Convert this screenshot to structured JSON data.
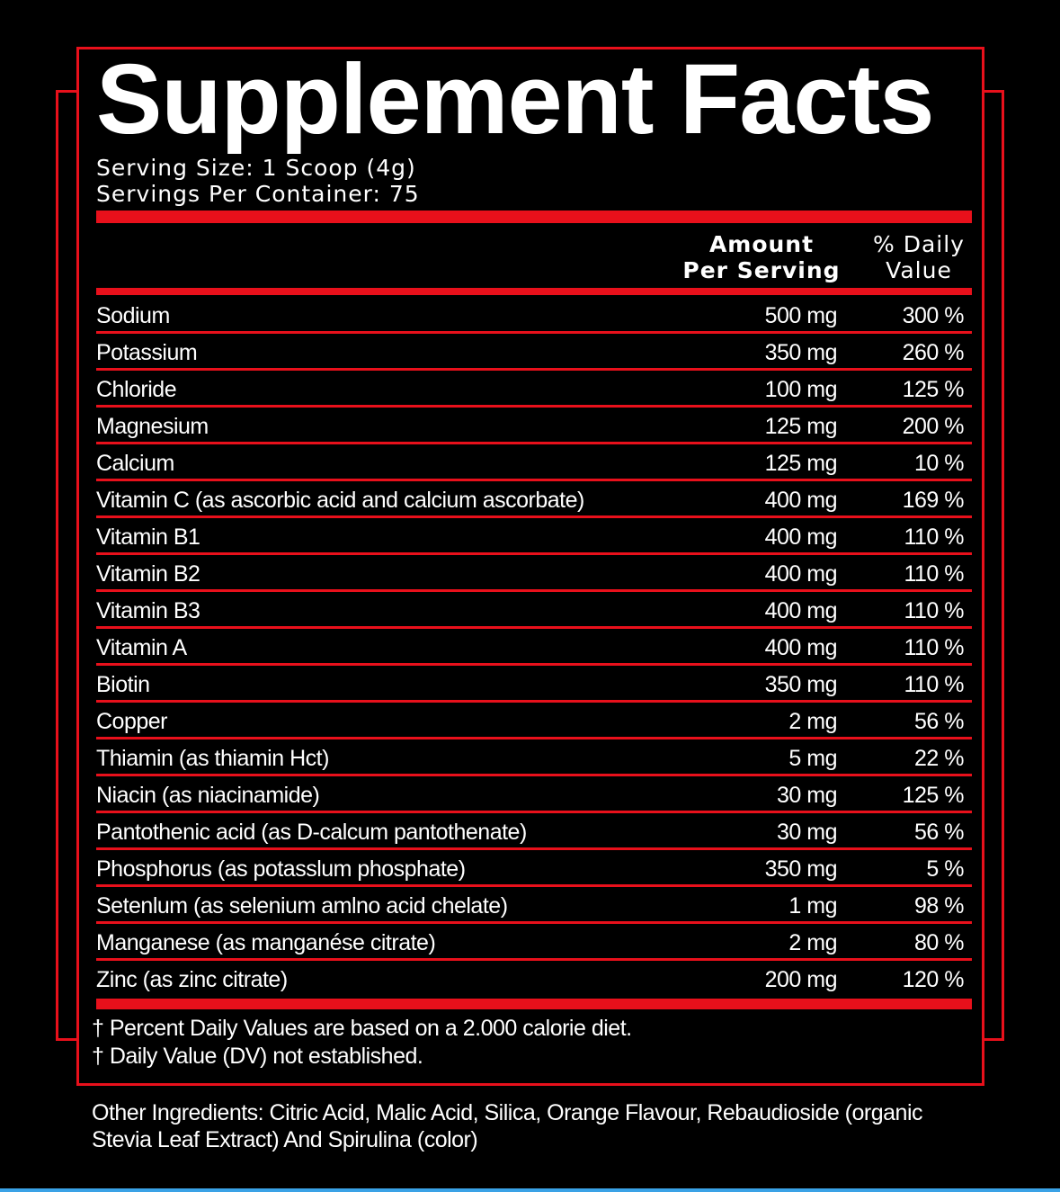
{
  "label": {
    "title": "Supplement Facts",
    "serving_size": "Serving Size: 1 Scoop (4g)",
    "servings_per_container": "Servings Per Container: 75",
    "header_amount_line1": "Amount",
    "header_amount_line2": "Per Serving",
    "header_dv_line1": "% Daily",
    "header_dv_line2": "Value",
    "nutrients": [
      {
        "name": "Sodium",
        "amount": "500 mg",
        "dv": "300 %"
      },
      {
        "name": "Potassium",
        "amount": "350 mg",
        "dv": "260 %"
      },
      {
        "name": "Chloride",
        "amount": "100 mg",
        "dv": "125 %"
      },
      {
        "name": "Magnesium",
        "amount": "125 mg",
        "dv": "200 %"
      },
      {
        "name": "Calcium",
        "amount": "125 mg",
        "dv": "10 %"
      },
      {
        "name": "Vitamin C (as ascorbic acid and calcium ascorbate)",
        "amount": "400 mg",
        "dv": "169 %"
      },
      {
        "name": "Vitamin B1",
        "amount": "400  mg",
        "dv": "110 %"
      },
      {
        "name": "Vitamin B2",
        "amount": "400 mg",
        "dv": "110 %"
      },
      {
        "name": "Vitamin B3",
        "amount": "400 mg",
        "dv": "110 %"
      },
      {
        "name": "Vitamin A",
        "amount": "400 mg",
        "dv": "110 %"
      },
      {
        "name": "Biotin",
        "amount": "350 mg",
        "dv": "110 %"
      },
      {
        "name": "Copper",
        "amount": "2 mg",
        "dv": "56 %"
      },
      {
        "name": "Thiamin (as thiamin Hct)",
        "amount": "5  mg",
        "dv": "22 %"
      },
      {
        "name": "Niacin (as niacinamide)",
        "amount": "30  mg",
        "dv": "125 %"
      },
      {
        "name": "Pantothenic acid (as D-calcum pantothenate)",
        "amount": "30  mg",
        "dv": "56 %"
      },
      {
        "name": "Phosphorus (as potasslum phosphate)",
        "amount": "350 mg",
        "dv": "5 %"
      },
      {
        "name": "Setenlum (as selenium amlno acid chelate)",
        "amount": "1  mg",
        "dv": "98 %"
      },
      {
        "name": "Manganese (as manganése citrate)",
        "amount": "2  mg",
        "dv": "80 %"
      },
      {
        "name": "Zinc (as zinc citrate)",
        "amount": "200  mg",
        "dv": "120 %"
      }
    ],
    "footnote_1": "† Percent Daily Values are based on a 2.000 calorie diet.",
    "footnote_2": "† Daily Value (DV) not established.",
    "other_ingredients": "Other Ingredients: Citric Acid, Malic Acid, Silica, Orange Flavour, Rebaudioside (organic Stevia Leaf Extract) And Spirulina (color)"
  },
  "colors": {
    "accent": "#e8101b",
    "background": "#000000",
    "text": "#ffffff"
  }
}
